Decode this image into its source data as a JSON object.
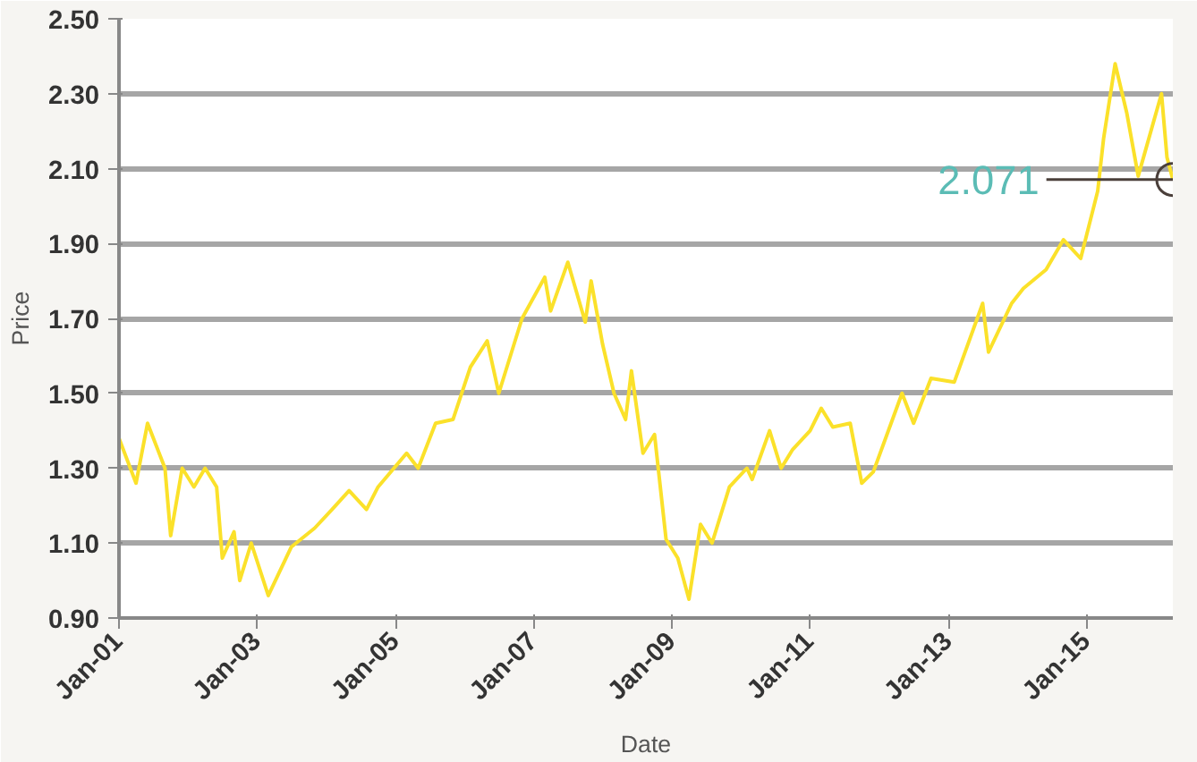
{
  "chart_data": {
    "type": "line",
    "xlabel": "Date",
    "ylabel": "Price",
    "x": [
      "2001-01",
      "2001-04",
      "2001-06",
      "2001-09",
      "2001-10",
      "2001-12",
      "2002-02",
      "2002-04",
      "2002-06",
      "2002-07",
      "2002-09",
      "2002-10",
      "2002-12",
      "2003-03",
      "2003-07",
      "2003-11",
      "2004-02",
      "2004-05",
      "2004-08",
      "2004-10",
      "2005-03",
      "2005-05",
      "2005-08",
      "2005-11",
      "2006-02",
      "2006-05",
      "2006-07",
      "2006-11",
      "2007-03",
      "2007-04",
      "2007-07",
      "2007-10",
      "2007-11",
      "2008-01",
      "2008-03",
      "2008-05",
      "2008-06",
      "2008-08",
      "2008-10",
      "2008-12",
      "2009-02",
      "2009-04",
      "2009-06",
      "2009-08",
      "2009-11",
      "2010-02",
      "2010-03",
      "2010-06",
      "2010-08",
      "2010-10",
      "2011-01",
      "2011-03",
      "2011-05",
      "2011-08",
      "2011-10",
      "2011-12",
      "2012-05",
      "2012-07",
      "2012-10",
      "2013-02",
      "2013-07",
      "2013-08",
      "2013-12",
      "2014-02",
      "2014-06",
      "2014-09",
      "2014-12",
      "2015-03",
      "2015-04",
      "2015-06",
      "2015-08",
      "2015-10",
      "2016-02",
      "2016-03",
      "2016-04"
    ],
    "series": [
      {
        "color": "#fbe12a",
        "values": [
          1.38,
          1.26,
          1.42,
          1.3,
          1.12,
          1.3,
          1.25,
          1.3,
          1.25,
          1.06,
          1.13,
          1.0,
          1.1,
          0.96,
          1.09,
          1.14,
          1.19,
          1.24,
          1.19,
          1.25,
          1.34,
          1.3,
          1.42,
          1.43,
          1.57,
          1.64,
          1.5,
          1.7,
          1.81,
          1.72,
          1.85,
          1.69,
          1.8,
          1.63,
          1.5,
          1.43,
          1.56,
          1.34,
          1.39,
          1.11,
          1.06,
          0.95,
          1.15,
          1.1,
          1.25,
          1.3,
          1.27,
          1.4,
          1.3,
          1.35,
          1.4,
          1.46,
          1.41,
          1.42,
          1.26,
          1.29,
          1.5,
          1.42,
          1.54,
          1.53,
          1.74,
          1.61,
          1.74,
          1.78,
          1.83,
          1.91,
          1.86,
          2.04,
          2.18,
          2.38,
          2.25,
          2.08,
          2.3,
          2.13,
          2.071
        ]
      }
    ],
    "xlim": [
      "2001-01",
      "2016-04"
    ],
    "xticks": [
      {
        "value": "2001-01",
        "label": "Jan-01"
      },
      {
        "value": "2003-01",
        "label": "Jan-03"
      },
      {
        "value": "2005-01",
        "label": "Jan-05"
      },
      {
        "value": "2007-01",
        "label": "Jan-07"
      },
      {
        "value": "2009-01",
        "label": "Jan-09"
      },
      {
        "value": "2011-01",
        "label": "Jan-11"
      },
      {
        "value": "2013-01",
        "label": "Jan-13"
      },
      {
        "value": "2015-01",
        "label": "Jan-15"
      }
    ],
    "ylim": [
      0.9,
      2.5
    ],
    "yticks": [
      {
        "value": 0.9,
        "label": "0.90"
      },
      {
        "value": 1.1,
        "label": "1.10"
      },
      {
        "value": 1.3,
        "label": "1.30"
      },
      {
        "value": 1.5,
        "label": "1.50"
      },
      {
        "value": 1.7,
        "label": "1.70"
      },
      {
        "value": 1.9,
        "label": "1.90"
      },
      {
        "value": 2.1,
        "label": "2.10"
      },
      {
        "value": 2.3,
        "label": "2.30"
      },
      {
        "value": 2.5,
        "label": "2.50"
      }
    ],
    "grid": "y",
    "annotations": [
      {
        "text": "2.071",
        "x": "2016-04",
        "y": 2.071
      }
    ]
  }
}
